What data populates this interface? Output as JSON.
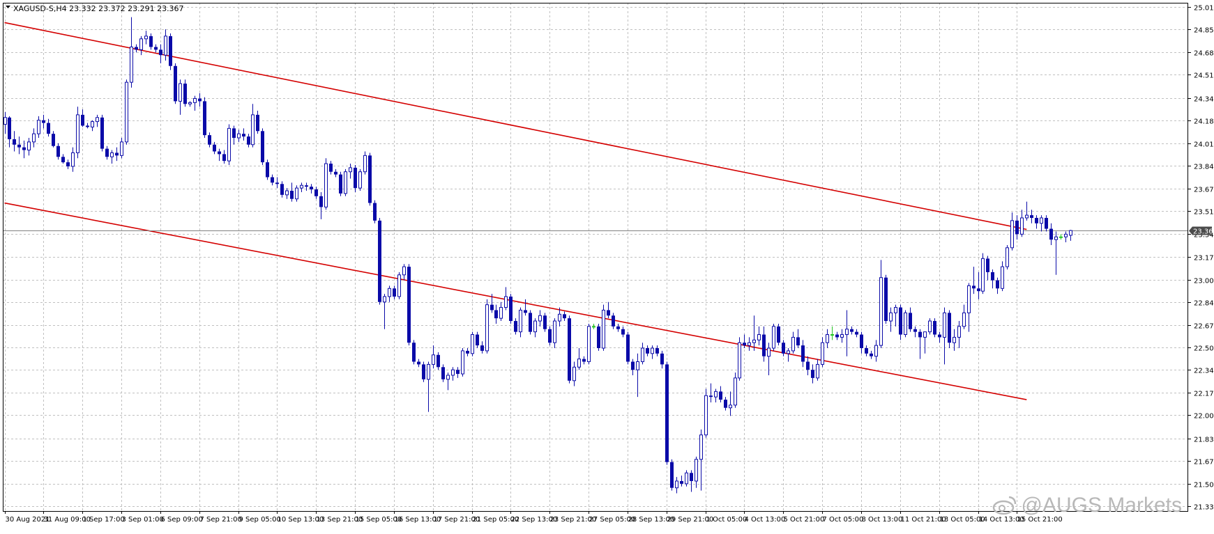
{
  "header": {
    "symbol_line": "XAGUSD-S,H4  23.332 23.372 23.291 23.367"
  },
  "watermark": {
    "text": "@AUGS Markets"
  },
  "colors": {
    "background": "#ffffff",
    "grid": "#c0c0c0",
    "candle": "#0a0aa8",
    "doji_candle": "#22c422",
    "channel": "#d40000",
    "price_line": "#808080",
    "axis_text": "#000000"
  },
  "chart_data": {
    "type": "candlestick",
    "title": "XAGUSD-S,H4",
    "ohlc_header": {
      "open": 23.332,
      "high": 23.372,
      "low": 23.291,
      "close": 23.367
    },
    "grid": true,
    "legend": "none",
    "ylim": [
      21.335,
      25.015
    ],
    "y_ticks": [
      "25.015",
      "24.850",
      "24.680",
      "24.515",
      "24.345",
      "24.180",
      "24.010",
      "23.845",
      "23.675",
      "23.510",
      "23.340",
      "23.175",
      "23.005",
      "22.840",
      "22.670",
      "22.505",
      "22.340",
      "22.170",
      "22.005",
      "21.835",
      "21.670",
      "21.500",
      "21.335"
    ],
    "x_tick_labels": [
      "30 Aug 2021",
      "31 Aug 09:00",
      "1 Sep 17:00",
      "3 Sep 01:00",
      "6 Sep 09:00",
      "7 Sep 21:00",
      "9 Sep 05:00",
      "10 Sep 13:00",
      "13 Sep 21:00",
      "15 Sep 05:00",
      "16 Sep 13:00",
      "17 Sep 21:00",
      "21 Sep 05:00",
      "22 Sep 13:00",
      "23 Sep 21:00",
      "27 Sep 05:00",
      "28 Sep 13:00",
      "29 Sep 21:00",
      "1 Oct 05:00",
      "4 Oct 13:00",
      "5 Oct 21:00",
      "7 Oct 05:00",
      "8 Oct 13:00",
      "11 Oct 21:00",
      "13 Oct 05:00",
      "14 Oct 13:00",
      "15 Oct 21:00"
    ],
    "x_tick_positions": [
      0,
      8,
      16,
      24,
      32,
      40,
      48,
      56,
      64,
      72,
      80,
      88,
      96,
      104,
      112,
      120,
      128,
      136,
      144,
      152,
      160,
      168,
      176,
      184,
      192,
      200,
      208
    ],
    "current_price": {
      "value": 23.367,
      "label": "23.367"
    },
    "channel_lines": [
      {
        "name": "upper",
        "start": {
          "index": 0,
          "price": 24.9
        },
        "end": {
          "index": 210,
          "price": 23.375
        }
      },
      {
        "name": "lower",
        "start": {
          "index": 0,
          "price": 23.57
        },
        "end": {
          "index": 210,
          "price": 22.12
        }
      }
    ],
    "candles": [
      [
        24.15,
        24.24,
        24.08,
        24.2
      ],
      [
        24.2,
        24.21,
        23.98,
        24.04
      ],
      [
        24.04,
        24.1,
        23.95,
        24.0
      ],
      [
        24.0,
        24.06,
        23.93,
        23.98
      ],
      [
        23.98,
        24.03,
        23.9,
        23.96
      ],
      [
        23.96,
        24.05,
        23.92,
        24.02
      ],
      [
        24.02,
        24.12,
        23.98,
        24.08
      ],
      [
        24.08,
        24.21,
        24.05,
        24.18
      ],
      [
        24.18,
        24.22,
        24.12,
        24.16
      ],
      [
        24.16,
        24.19,
        24.06,
        24.08
      ],
      [
        24.08,
        24.1,
        23.98,
        23.99
      ],
      [
        23.99,
        24.01,
        23.89,
        23.91
      ],
      [
        23.91,
        23.93,
        23.86,
        23.87
      ],
      [
        23.87,
        23.89,
        23.82,
        23.84
      ],
      [
        23.84,
        23.98,
        23.8,
        23.94
      ],
      [
        23.94,
        24.28,
        23.9,
        24.22
      ],
      [
        24.22,
        24.26,
        24.13,
        24.14
      ],
      [
        24.14,
        24.16,
        24.12,
        24.13
      ],
      [
        24.13,
        24.18,
        24.1,
        24.17
      ],
      [
        24.17,
        24.22,
        24.13,
        24.2
      ],
      [
        24.2,
        24.22,
        23.95,
        23.97
      ],
      [
        23.97,
        23.99,
        23.89,
        23.91
      ],
      [
        23.91,
        23.96,
        23.86,
        23.94
      ],
      [
        23.94,
        23.98,
        23.88,
        23.92
      ],
      [
        23.92,
        24.05,
        23.9,
        24.02
      ],
      [
        24.02,
        24.48,
        24.0,
        24.46
      ],
      [
        24.46,
        24.94,
        24.42,
        24.72
      ],
      [
        24.72,
        24.74,
        24.68,
        24.7
      ],
      [
        24.7,
        24.8,
        24.66,
        24.78
      ],
      [
        24.78,
        24.84,
        24.74,
        24.8
      ],
      [
        24.8,
        24.82,
        24.7,
        24.72
      ],
      [
        24.72,
        24.74,
        24.68,
        24.7
      ],
      [
        24.7,
        24.74,
        24.6,
        24.66
      ],
      [
        24.66,
        24.85,
        24.62,
        24.8
      ],
      [
        24.8,
        24.82,
        24.55,
        24.58
      ],
      [
        24.58,
        24.6,
        24.3,
        24.32
      ],
      [
        24.32,
        24.48,
        24.22,
        24.45
      ],
      [
        24.45,
        24.48,
        24.28,
        24.3
      ],
      [
        24.3,
        24.32,
        24.28,
        24.31
      ],
      [
        24.31,
        24.36,
        24.25,
        24.34
      ],
      [
        24.34,
        24.38,
        24.28,
        24.32
      ],
      [
        24.32,
        24.35,
        24.05,
        24.07
      ],
      [
        24.07,
        24.09,
        23.98,
        24.0
      ],
      [
        24.0,
        24.02,
        23.93,
        23.95
      ],
      [
        23.95,
        23.97,
        23.88,
        23.93
      ],
      [
        23.93,
        23.96,
        23.86,
        23.88
      ],
      [
        23.88,
        24.15,
        23.85,
        24.12
      ],
      [
        24.12,
        24.14,
        24.0,
        24.05
      ],
      [
        24.05,
        24.11,
        24.02,
        24.08
      ],
      [
        24.08,
        24.12,
        24.03,
        24.06
      ],
      [
        24.06,
        24.08,
        23.98,
        24.0
      ],
      [
        24.0,
        24.3,
        23.98,
        24.22
      ],
      [
        24.22,
        24.25,
        24.08,
        24.1
      ],
      [
        24.1,
        24.12,
        23.85,
        23.87
      ],
      [
        23.87,
        23.89,
        23.74,
        23.76
      ],
      [
        23.76,
        23.78,
        23.7,
        23.72
      ],
      [
        23.72,
        23.76,
        23.68,
        23.71
      ],
      [
        23.71,
        23.73,
        23.61,
        23.63
      ],
      [
        23.63,
        23.68,
        23.6,
        23.66
      ],
      [
        23.66,
        23.72,
        23.58,
        23.6
      ],
      [
        23.6,
        23.7,
        23.58,
        23.68
      ],
      [
        23.68,
        23.72,
        23.65,
        23.7
      ],
      [
        23.7,
        23.72,
        23.66,
        23.69
      ],
      [
        23.69,
        23.71,
        23.64,
        23.67
      ],
      [
        23.67,
        23.69,
        23.6,
        23.62
      ],
      [
        23.62,
        23.65,
        23.45,
        23.54
      ],
      [
        23.54,
        23.9,
        23.52,
        23.86
      ],
      [
        23.86,
        23.88,
        23.78,
        23.8
      ],
      [
        23.8,
        23.82,
        23.76,
        23.78
      ],
      [
        23.78,
        23.8,
        23.62,
        23.64
      ],
      [
        23.64,
        23.82,
        23.62,
        23.8
      ],
      [
        23.8,
        23.86,
        23.75,
        23.83
      ],
      [
        23.83,
        23.85,
        23.65,
        23.68
      ],
      [
        23.68,
        23.82,
        23.66,
        23.8
      ],
      [
        23.8,
        23.95,
        23.78,
        23.92
      ],
      [
        23.92,
        23.94,
        23.55,
        23.57
      ],
      [
        23.57,
        23.59,
        23.42,
        23.44
      ],
      [
        23.44,
        23.46,
        22.82,
        22.84
      ],
      [
        22.84,
        22.9,
        22.64,
        22.88
      ],
      [
        22.88,
        22.96,
        22.84,
        22.94
      ],
      [
        22.94,
        22.96,
        22.86,
        22.88
      ],
      [
        22.88,
        23.06,
        22.86,
        23.04
      ],
      [
        23.04,
        23.12,
        23.0,
        23.1
      ],
      [
        23.1,
        23.12,
        22.52,
        22.54
      ],
      [
        22.54,
        22.56,
        22.38,
        22.4
      ],
      [
        22.4,
        22.42,
        22.36,
        22.38
      ],
      [
        22.38,
        22.4,
        22.25,
        22.27
      ],
      [
        22.27,
        22.4,
        22.03,
        22.38
      ],
      [
        22.38,
        22.52,
        22.35,
        22.45
      ],
      [
        22.45,
        22.47,
        22.34,
        22.36
      ],
      [
        22.36,
        22.38,
        22.25,
        22.27
      ],
      [
        22.27,
        22.32,
        22.19,
        22.3
      ],
      [
        22.3,
        22.36,
        22.26,
        22.34
      ],
      [
        22.34,
        22.36,
        22.28,
        22.31
      ],
      [
        22.31,
        22.5,
        22.29,
        22.48
      ],
      [
        22.48,
        22.5,
        22.44,
        22.46
      ],
      [
        22.46,
        22.62,
        22.44,
        22.6
      ],
      [
        22.6,
        22.62,
        22.5,
        22.52
      ],
      [
        22.52,
        22.55,
        22.46,
        22.48
      ],
      [
        22.48,
        22.86,
        22.46,
        22.82
      ],
      [
        22.82,
        22.9,
        22.76,
        22.78
      ],
      [
        22.78,
        22.82,
        22.68,
        22.72
      ],
      [
        22.72,
        22.84,
        22.7,
        22.8
      ],
      [
        22.8,
        22.95,
        22.78,
        22.88
      ],
      [
        22.88,
        22.9,
        22.68,
        22.7
      ],
      [
        22.7,
        22.72,
        22.6,
        22.62
      ],
      [
        22.62,
        22.8,
        22.58,
        22.78
      ],
      [
        22.78,
        22.86,
        22.74,
        22.76
      ],
      [
        22.76,
        22.78,
        22.6,
        22.62
      ],
      [
        22.62,
        22.72,
        22.58,
        22.7
      ],
      [
        22.7,
        22.78,
        22.66,
        22.74
      ],
      [
        22.74,
        22.76,
        22.62,
        22.64
      ],
      [
        22.64,
        22.66,
        22.52,
        22.54
      ],
      [
        22.54,
        22.72,
        22.5,
        22.7
      ],
      [
        22.7,
        22.8,
        22.66,
        22.75
      ],
      [
        22.75,
        22.77,
        22.7,
        22.72
      ],
      [
        22.72,
        22.74,
        22.24,
        22.26
      ],
      [
        22.26,
        22.4,
        22.22,
        22.36
      ],
      [
        22.36,
        22.5,
        22.34,
        22.42
      ],
      [
        22.42,
        22.44,
        22.38,
        22.4
      ],
      [
        22.4,
        22.68,
        22.38,
        22.66
      ],
      [
        22.66,
        22.68,
        22.64,
        22.66
      ],
      [
        22.66,
        22.68,
        22.48,
        22.5
      ],
      [
        22.5,
        22.82,
        22.48,
        22.78
      ],
      [
        22.78,
        22.84,
        22.72,
        22.74
      ],
      [
        22.74,
        22.76,
        22.64,
        22.66
      ],
      [
        22.66,
        22.68,
        22.62,
        22.64
      ],
      [
        22.64,
        22.66,
        22.58,
        22.6
      ],
      [
        22.6,
        22.62,
        22.38,
        22.4
      ],
      [
        22.4,
        22.42,
        22.3,
        22.34
      ],
      [
        22.34,
        22.46,
        22.14,
        22.4
      ],
      [
        22.4,
        22.54,
        22.38,
        22.5
      ],
      [
        22.5,
        22.52,
        22.44,
        22.46
      ],
      [
        22.46,
        22.52,
        22.42,
        22.5
      ],
      [
        22.5,
        22.52,
        22.44,
        22.46
      ],
      [
        22.46,
        22.48,
        22.35,
        22.38
      ],
      [
        22.38,
        22.4,
        21.64,
        21.66
      ],
      [
        21.66,
        21.68,
        21.45,
        21.47
      ],
      [
        21.47,
        21.55,
        21.43,
        21.52
      ],
      [
        21.52,
        21.56,
        21.48,
        21.5
      ],
      [
        21.5,
        21.6,
        21.48,
        21.58
      ],
      [
        21.58,
        21.6,
        21.44,
        21.52
      ],
      [
        21.52,
        21.7,
        21.47,
        21.68
      ],
      [
        21.68,
        21.9,
        21.45,
        21.86
      ],
      [
        21.86,
        22.2,
        21.84,
        22.15
      ],
      [
        22.15,
        22.24,
        22.1,
        22.14
      ],
      [
        22.14,
        22.2,
        22.1,
        22.18
      ],
      [
        22.18,
        22.22,
        22.1,
        22.12
      ],
      [
        22.12,
        22.14,
        22.04,
        22.06
      ],
      [
        22.06,
        22.18,
        22.0,
        22.08
      ],
      [
        22.08,
        22.32,
        22.06,
        22.28
      ],
      [
        22.28,
        22.58,
        22.26,
        22.54
      ],
      [
        22.54,
        22.6,
        22.5,
        22.52
      ],
      [
        22.52,
        22.58,
        22.48,
        22.54
      ],
      [
        22.54,
        22.74,
        22.48,
        22.56
      ],
      [
        22.56,
        22.66,
        22.52,
        22.6
      ],
      [
        22.6,
        22.66,
        22.4,
        22.44
      ],
      [
        22.44,
        22.54,
        22.3,
        22.5
      ],
      [
        22.5,
        22.68,
        22.48,
        22.66
      ],
      [
        22.66,
        22.68,
        22.52,
        22.54
      ],
      [
        22.54,
        22.56,
        22.44,
        22.46
      ],
      [
        22.46,
        22.5,
        22.4,
        22.48
      ],
      [
        22.48,
        22.62,
        22.46,
        22.58
      ],
      [
        22.58,
        22.64,
        22.5,
        22.52
      ],
      [
        22.52,
        22.56,
        22.36,
        22.4
      ],
      [
        22.4,
        22.44,
        22.3,
        22.34
      ],
      [
        22.34,
        22.38,
        22.24,
        22.28
      ],
      [
        22.28,
        22.42,
        22.26,
        22.38
      ],
      [
        22.38,
        22.58,
        22.36,
        22.54
      ],
      [
        22.54,
        22.64,
        22.5,
        22.6
      ],
      [
        22.6,
        22.66,
        22.56,
        22.6
      ],
      [
        22.6,
        22.62,
        22.56,
        22.58
      ],
      [
        22.58,
        22.64,
        22.54,
        22.6
      ],
      [
        22.6,
        22.78,
        22.44,
        22.64
      ],
      [
        22.64,
        22.66,
        22.6,
        22.62
      ],
      [
        22.62,
        22.64,
        22.58,
        22.6
      ],
      [
        22.6,
        22.62,
        22.46,
        22.5
      ],
      [
        22.5,
        22.52,
        22.44,
        22.46
      ],
      [
        22.46,
        22.48,
        22.42,
        22.44
      ],
      [
        22.44,
        22.56,
        22.4,
        22.52
      ],
      [
        22.52,
        23.15,
        22.5,
        23.02
      ],
      [
        23.02,
        23.04,
        22.68,
        22.7
      ],
      [
        22.7,
        22.8,
        22.62,
        22.76
      ],
      [
        22.76,
        22.82,
        22.66,
        22.8
      ],
      [
        22.8,
        22.82,
        22.56,
        22.6
      ],
      [
        22.6,
        22.78,
        22.58,
        22.76
      ],
      [
        22.76,
        22.8,
        22.62,
        22.64
      ],
      [
        22.64,
        22.66,
        22.58,
        22.62
      ],
      [
        22.62,
        22.64,
        22.42,
        22.58
      ],
      [
        22.58,
        22.6,
        22.46,
        22.62
      ],
      [
        22.62,
        22.72,
        22.6,
        22.7
      ],
      [
        22.7,
        22.72,
        22.58,
        22.6
      ],
      [
        22.6,
        22.62,
        22.54,
        22.58
      ],
      [
        22.58,
        22.8,
        22.38,
        22.76
      ],
      [
        22.76,
        22.78,
        22.5,
        22.54
      ],
      [
        22.54,
        22.64,
        22.48,
        22.58
      ],
      [
        22.58,
        22.7,
        22.5,
        22.66
      ],
      [
        22.66,
        22.82,
        22.64,
        22.76
      ],
      [
        22.76,
        22.98,
        22.62,
        22.96
      ],
      [
        22.96,
        23.1,
        22.9,
        22.94
      ],
      [
        22.94,
        23.06,
        22.86,
        22.92
      ],
      [
        22.92,
        23.2,
        22.9,
        23.16
      ],
      [
        23.16,
        23.18,
        23.0,
        23.06
      ],
      [
        23.06,
        23.08,
        22.94,
        23.0
      ],
      [
        23.0,
        23.02,
        22.9,
        22.94
      ],
      [
        22.94,
        23.14,
        22.92,
        23.1
      ],
      [
        23.1,
        23.26,
        23.08,
        23.24
      ],
      [
        23.24,
        23.5,
        23.22,
        23.44
      ],
      [
        23.44,
        23.48,
        23.3,
        23.34
      ],
      [
        23.34,
        23.52,
        23.32,
        23.46
      ],
      [
        23.46,
        23.58,
        23.44,
        23.48
      ],
      [
        23.48,
        23.52,
        23.42,
        23.46
      ],
      [
        23.46,
        23.48,
        23.38,
        23.42
      ],
      [
        23.42,
        23.48,
        23.36,
        23.46
      ],
      [
        23.46,
        23.48,
        23.36,
        23.38
      ],
      [
        23.38,
        23.42,
        23.26,
        23.3
      ],
      [
        23.3,
        23.36,
        23.04,
        23.32
      ],
      [
        23.32,
        23.34,
        23.3,
        23.32
      ],
      [
        23.32,
        23.36,
        23.28,
        23.34
      ],
      [
        23.332,
        23.372,
        23.291,
        23.367
      ]
    ]
  }
}
